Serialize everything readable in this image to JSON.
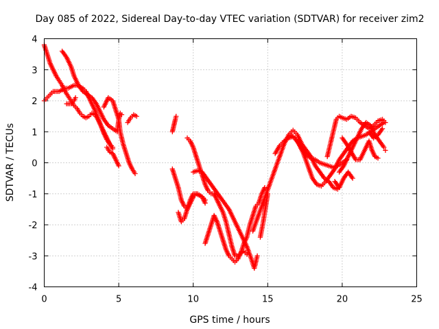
{
  "chart_data": {
    "type": "scatter",
    "title": "Day 085 of 2022, Sidereal Day-to-day VTEC variation (SDTVAR) for receiver zim2",
    "xlabel": "GPS time / hours",
    "ylabel": "SDTVAR / TECUs",
    "xlim": [
      0,
      25
    ],
    "ylim": [
      -4,
      4
    ],
    "xticks": [
      0,
      5,
      10,
      15,
      20,
      25
    ],
    "yticks": [
      -4,
      -3,
      -2,
      -1,
      0,
      1,
      2,
      3,
      4
    ],
    "grid": true,
    "marker": "+",
    "color": "#ff0000",
    "series": [
      {
        "points": [
          [
            0.0,
            3.8
          ],
          [
            0.2,
            3.5
          ],
          [
            0.4,
            3.2
          ],
          [
            0.6,
            3.0
          ],
          [
            0.8,
            2.8
          ],
          [
            1.0,
            2.65
          ],
          [
            1.2,
            2.5
          ],
          [
            1.4,
            2.3
          ],
          [
            1.6,
            2.15
          ],
          [
            1.8,
            2.0
          ],
          [
            2.0,
            1.85
          ],
          [
            2.2,
            1.75
          ],
          [
            2.4,
            1.6
          ],
          [
            2.6,
            1.5
          ],
          [
            2.8,
            1.45
          ],
          [
            3.0,
            1.5
          ],
          [
            3.2,
            1.6
          ],
          [
            3.4,
            1.55
          ],
          [
            3.6,
            1.4
          ],
          [
            3.8,
            1.2
          ],
          [
            4.0,
            1.0
          ],
          [
            4.2,
            0.8
          ],
          [
            4.4,
            0.6
          ],
          [
            4.6,
            0.45
          ],
          [
            0.0,
            2.0
          ],
          [
            0.2,
            2.1
          ],
          [
            0.4,
            2.2
          ],
          [
            0.6,
            2.3
          ],
          [
            0.8,
            2.3
          ],
          [
            1.0,
            2.3
          ],
          [
            1.2,
            2.35
          ],
          [
            1.4,
            2.4
          ],
          [
            1.6,
            2.4
          ],
          [
            1.8,
            2.45
          ],
          [
            2.0,
            2.5
          ],
          [
            2.2,
            2.5
          ],
          [
            2.4,
            2.45
          ],
          [
            2.6,
            2.4
          ],
          [
            2.8,
            2.3
          ],
          [
            3.0,
            2.1
          ],
          [
            3.2,
            1.9
          ],
          [
            3.4,
            1.7
          ],
          [
            3.6,
            1.45
          ],
          [
            3.8,
            1.2
          ],
          [
            4.0,
            0.95
          ],
          [
            4.2,
            0.75
          ],
          [
            4.4,
            0.6
          ],
          [
            4.6,
            0.5
          ],
          [
            1.2,
            3.6
          ],
          [
            1.5,
            3.4
          ],
          [
            1.8,
            3.1
          ],
          [
            2.0,
            2.8
          ],
          [
            2.3,
            2.5
          ],
          [
            2.6,
            2.3
          ],
          [
            2.9,
            2.2
          ],
          [
            3.2,
            2.1
          ],
          [
            3.5,
            1.9
          ],
          [
            3.8,
            1.6
          ],
          [
            4.0,
            1.4
          ],
          [
            4.3,
            1.2
          ],
          [
            4.6,
            1.1
          ],
          [
            4.9,
            1.0
          ],
          [
            5.0,
            1.4
          ],
          [
            5.1,
            1.6
          ],
          [
            5.2,
            1.55
          ],
          [
            4.0,
            1.8
          ],
          [
            4.3,
            2.1
          ],
          [
            4.6,
            2.0
          ],
          [
            4.8,
            1.7
          ],
          [
            5.0,
            1.4
          ],
          [
            5.1,
            1.0
          ],
          [
            5.3,
            0.6
          ],
          [
            5.5,
            0.3
          ],
          [
            5.7,
            0.0
          ],
          [
            5.9,
            -0.2
          ],
          [
            6.1,
            -0.35
          ],
          [
            1.5,
            1.9
          ],
          [
            1.8,
            1.9
          ],
          [
            2.0,
            2.0
          ],
          [
            2.1,
            2.1
          ],
          [
            5.6,
            1.3
          ],
          [
            5.8,
            1.45
          ],
          [
            6.0,
            1.55
          ],
          [
            6.2,
            1.5
          ],
          [
            4.2,
            0.5
          ],
          [
            4.4,
            0.35
          ],
          [
            4.6,
            0.3
          ],
          [
            4.8,
            0.1
          ],
          [
            5.0,
            -0.1
          ],
          [
            8.6,
            1.0
          ],
          [
            8.7,
            1.2
          ],
          [
            8.8,
            1.4
          ],
          [
            8.85,
            1.5
          ],
          [
            8.6,
            -0.2
          ],
          [
            8.8,
            -0.5
          ],
          [
            9.0,
            -0.8
          ],
          [
            9.2,
            -1.2
          ],
          [
            9.4,
            -1.4
          ],
          [
            9.6,
            -1.5
          ],
          [
            9.8,
            -1.3
          ],
          [
            10.0,
            -1.1
          ],
          [
            10.2,
            -1.0
          ],
          [
            10.4,
            -1.05
          ],
          [
            10.6,
            -1.1
          ],
          [
            10.8,
            -1.2
          ],
          [
            9.6,
            0.8
          ],
          [
            9.8,
            0.7
          ],
          [
            10.0,
            0.5
          ],
          [
            10.2,
            0.2
          ],
          [
            10.4,
            -0.1
          ],
          [
            10.6,
            -0.4
          ],
          [
            10.8,
            -0.7
          ],
          [
            11.0,
            -0.9
          ],
          [
            11.2,
            -1.0
          ],
          [
            11.4,
            -1.0
          ],
          [
            11.6,
            -1.2
          ],
          [
            11.8,
            -1.4
          ],
          [
            12.0,
            -1.6
          ],
          [
            12.2,
            -1.9
          ],
          [
            12.4,
            -2.3
          ],
          [
            12.6,
            -2.7
          ],
          [
            12.8,
            -3.0
          ],
          [
            13.0,
            -3.0
          ],
          [
            13.2,
            -2.9
          ],
          [
            13.4,
            -2.85
          ],
          [
            13.6,
            -2.95
          ],
          [
            10.0,
            -0.3
          ],
          [
            10.3,
            -0.25
          ],
          [
            10.6,
            -0.3
          ],
          [
            10.9,
            -0.5
          ],
          [
            11.2,
            -0.7
          ],
          [
            11.5,
            -0.9
          ],
          [
            11.8,
            -1.1
          ],
          [
            12.1,
            -1.3
          ],
          [
            12.4,
            -1.5
          ],
          [
            12.7,
            -1.8
          ],
          [
            13.0,
            -2.1
          ],
          [
            13.3,
            -2.4
          ],
          [
            13.6,
            -2.7
          ],
          [
            13.9,
            -3.1
          ],
          [
            14.1,
            -3.4
          ],
          [
            14.3,
            -3.0
          ],
          [
            14.5,
            -2.4
          ],
          [
            14.7,
            -1.9
          ],
          [
            14.9,
            -1.3
          ],
          [
            15.0,
            -1.0
          ],
          [
            9.0,
            -1.6
          ],
          [
            9.2,
            -1.9
          ],
          [
            9.4,
            -1.8
          ],
          [
            9.6,
            -1.5
          ],
          [
            9.8,
            -1.2
          ],
          [
            10.0,
            -1.0
          ],
          [
            10.3,
            -1.0
          ],
          [
            10.6,
            -1.1
          ],
          [
            10.8,
            -1.3
          ],
          [
            10.8,
            -2.6
          ],
          [
            11.0,
            -2.3
          ],
          [
            11.2,
            -2.0
          ],
          [
            11.4,
            -1.7
          ],
          [
            11.6,
            -1.9
          ],
          [
            11.8,
            -2.2
          ],
          [
            12.0,
            -2.5
          ],
          [
            12.2,
            -2.8
          ],
          [
            12.4,
            -3.0
          ],
          [
            12.6,
            -3.1
          ],
          [
            12.8,
            -3.2
          ],
          [
            13.0,
            -3.1
          ],
          [
            13.2,
            -2.9
          ],
          [
            13.4,
            -2.6
          ],
          [
            13.6,
            -2.4
          ],
          [
            13.8,
            -2.0
          ],
          [
            14.0,
            -1.7
          ],
          [
            14.2,
            -1.4
          ],
          [
            14.4,
            -1.3
          ],
          [
            14.6,
            -1.0
          ],
          [
            14.8,
            -0.8
          ],
          [
            14.0,
            -2.2
          ],
          [
            14.3,
            -1.8
          ],
          [
            14.6,
            -1.4
          ],
          [
            14.9,
            -1.0
          ],
          [
            15.2,
            -0.6
          ],
          [
            15.5,
            -0.2
          ],
          [
            15.8,
            0.2
          ],
          [
            16.1,
            0.6
          ],
          [
            16.4,
            0.9
          ],
          [
            16.7,
            1.05
          ],
          [
            17.0,
            0.9
          ],
          [
            17.3,
            0.6
          ],
          [
            17.6,
            0.4
          ],
          [
            17.9,
            0.2
          ],
          [
            18.2,
            -0.1
          ],
          [
            18.5,
            -0.3
          ],
          [
            18.8,
            -0.5
          ],
          [
            19.1,
            -0.6
          ],
          [
            19.4,
            -0.8
          ],
          [
            19.7,
            -0.85
          ],
          [
            15.5,
            0.3
          ],
          [
            15.8,
            0.55
          ],
          [
            16.1,
            0.7
          ],
          [
            16.4,
            0.8
          ],
          [
            16.7,
            0.85
          ],
          [
            17.0,
            0.7
          ],
          [
            17.3,
            0.45
          ],
          [
            17.6,
            0.25
          ],
          [
            17.9,
            0.15
          ],
          [
            18.2,
            0.1
          ],
          [
            18.5,
            0.0
          ],
          [
            18.8,
            -0.05
          ],
          [
            19.1,
            -0.1
          ],
          [
            19.4,
            -0.15
          ],
          [
            19.7,
            -0.1
          ],
          [
            20.0,
            0.0
          ],
          [
            20.3,
            0.1
          ],
          [
            16.5,
            0.9
          ],
          [
            16.8,
            0.8
          ],
          [
            17.1,
            0.6
          ],
          [
            17.4,
            0.3
          ],
          [
            17.7,
            -0.1
          ],
          [
            18.0,
            -0.5
          ],
          [
            18.3,
            -0.7
          ],
          [
            18.6,
            -0.75
          ],
          [
            18.9,
            -0.6
          ],
          [
            19.2,
            -0.4
          ],
          [
            19.5,
            -0.2
          ],
          [
            19.8,
            0.1
          ],
          [
            20.1,
            0.3
          ],
          [
            20.4,
            0.5
          ],
          [
            20.7,
            0.7
          ],
          [
            21.0,
            0.8
          ],
          [
            21.3,
            0.85
          ],
          [
            21.6,
            0.9
          ],
          [
            21.9,
            1.0
          ],
          [
            22.2,
            1.1
          ],
          [
            22.5,
            1.2
          ],
          [
            22.8,
            1.3
          ],
          [
            19.0,
            0.2
          ],
          [
            19.2,
            0.6
          ],
          [
            19.4,
            1.0
          ],
          [
            19.6,
            1.4
          ],
          [
            19.8,
            1.5
          ],
          [
            20.0,
            1.45
          ],
          [
            20.3,
            1.4
          ],
          [
            20.6,
            1.5
          ],
          [
            20.9,
            1.45
          ],
          [
            21.2,
            1.3
          ],
          [
            21.5,
            1.2
          ],
          [
            21.8,
            1.1
          ],
          [
            22.1,
            1.2
          ],
          [
            22.4,
            1.35
          ],
          [
            22.7,
            1.4
          ],
          [
            22.9,
            1.3
          ],
          [
            19.8,
            -0.3
          ],
          [
            20.1,
            -0.1
          ],
          [
            20.4,
            0.2
          ],
          [
            20.7,
            0.5
          ],
          [
            21.0,
            0.8
          ],
          [
            21.3,
            1.1
          ],
          [
            21.6,
            1.3
          ],
          [
            21.9,
            1.2
          ],
          [
            22.2,
            0.9
          ],
          [
            22.5,
            0.7
          ],
          [
            22.8,
            0.5
          ],
          [
            20.0,
            0.8
          ],
          [
            20.3,
            0.6
          ],
          [
            20.6,
            0.35
          ],
          [
            20.9,
            0.1
          ],
          [
            21.2,
            0.1
          ],
          [
            21.5,
            0.4
          ],
          [
            21.8,
            0.7
          ],
          [
            22.0,
            0.4
          ],
          [
            22.2,
            0.2
          ],
          [
            22.4,
            0.15
          ],
          [
            19.5,
            -0.6
          ],
          [
            19.8,
            -0.8
          ],
          [
            20.1,
            -0.5
          ],
          [
            20.4,
            -0.3
          ],
          [
            20.7,
            -0.5
          ],
          [
            21.8,
            1.0
          ],
          [
            22.1,
            0.8
          ],
          [
            22.4,
            0.9
          ],
          [
            22.7,
            1.1
          ],
          [
            22.9,
            0.4
          ]
        ]
      }
    ]
  }
}
